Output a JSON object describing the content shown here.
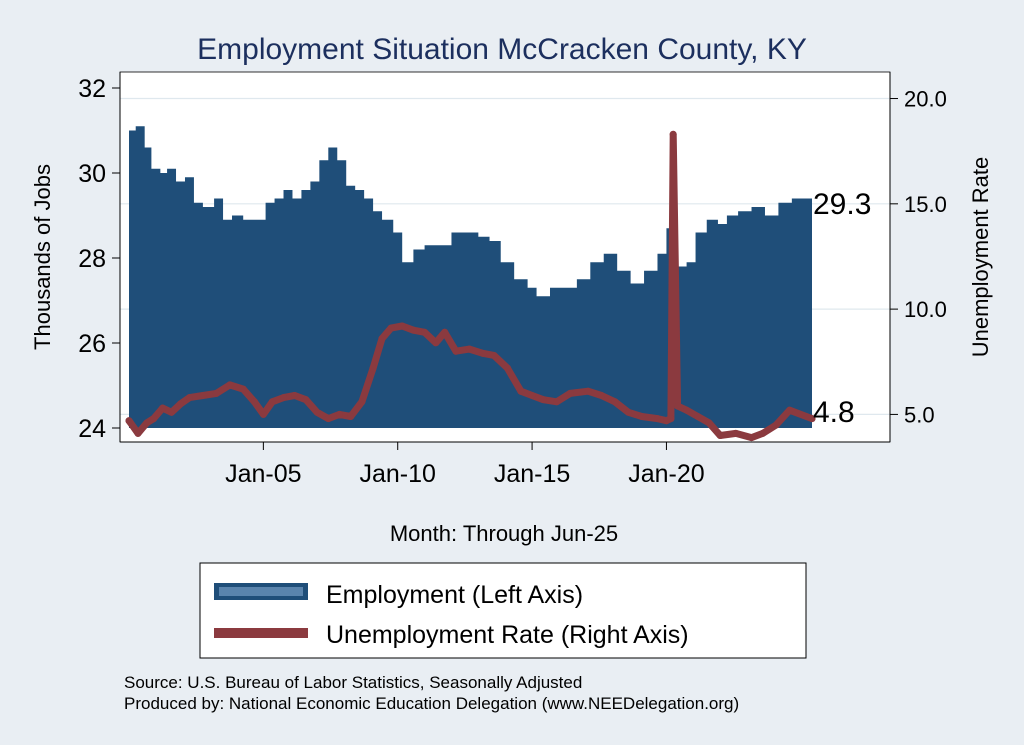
{
  "chart_data": {
    "type": "area",
    "title": "Employment Situation McCracken  County, KY",
    "xlabel": "Month: Through Jun-25",
    "ylabel_left": "Thousands of Jobs",
    "ylabel_right": "Unemployment Rate",
    "ylim_left": [
      24,
      32
    ],
    "ylim_right": [
      3.5,
      20.5
    ],
    "left_ticks": [
      "24",
      "26",
      "28",
      "30",
      "32"
    ],
    "right_ticks": [
      "5.0",
      "10.0",
      "15.0",
      "20.0"
    ],
    "x_ticks": [
      "Jan-05",
      "Jan-10",
      "Jan-15",
      "Jan-20"
    ],
    "x_range": [
      "Jan-2000",
      "Jun-2025"
    ],
    "grid": true,
    "legend_position": "bottom",
    "end_label_employment": "29.3",
    "end_label_unemployment": "4.8",
    "series": [
      {
        "name": "Employment (Left Axis)",
        "axis": "left",
        "style": "area",
        "color": "#1f4e79",
        "points": [
          [
            "2000-01",
            31.0
          ],
          [
            "2000-04",
            31.1
          ],
          [
            "2000-08",
            30.6
          ],
          [
            "2000-11",
            30.1
          ],
          [
            "2001-03",
            30.0
          ],
          [
            "2001-06",
            30.1
          ],
          [
            "2001-10",
            29.8
          ],
          [
            "2002-02",
            29.9
          ],
          [
            "2002-06",
            29.3
          ],
          [
            "2002-10",
            29.2
          ],
          [
            "2003-03",
            29.4
          ],
          [
            "2003-07",
            28.9
          ],
          [
            "2003-11",
            29.0
          ],
          [
            "2004-04",
            28.9
          ],
          [
            "2004-09",
            28.9
          ],
          [
            "2005-02",
            29.3
          ],
          [
            "2005-06",
            29.4
          ],
          [
            "2005-10",
            29.6
          ],
          [
            "2006-02",
            29.4
          ],
          [
            "2006-06",
            29.6
          ],
          [
            "2006-10",
            29.8
          ],
          [
            "2007-02",
            30.3
          ],
          [
            "2007-06",
            30.6
          ],
          [
            "2007-10",
            30.3
          ],
          [
            "2008-02",
            29.7
          ],
          [
            "2008-06",
            29.6
          ],
          [
            "2008-10",
            29.4
          ],
          [
            "2009-02",
            29.1
          ],
          [
            "2009-06",
            28.9
          ],
          [
            "2009-11",
            28.6
          ],
          [
            "2010-03",
            27.9
          ],
          [
            "2010-08",
            28.2
          ],
          [
            "2011-01",
            28.3
          ],
          [
            "2011-07",
            28.3
          ],
          [
            "2012-01",
            28.6
          ],
          [
            "2012-07",
            28.6
          ],
          [
            "2013-01",
            28.5
          ],
          [
            "2013-06",
            28.4
          ],
          [
            "2013-11",
            27.9
          ],
          [
            "2014-05",
            27.5
          ],
          [
            "2014-11",
            27.3
          ],
          [
            "2015-03",
            27.1
          ],
          [
            "2015-09",
            27.3
          ],
          [
            "2016-03",
            27.3
          ],
          [
            "2016-09",
            27.5
          ],
          [
            "2017-03",
            27.9
          ],
          [
            "2017-09",
            28.1
          ],
          [
            "2018-03",
            27.7
          ],
          [
            "2018-09",
            27.4
          ],
          [
            "2019-03",
            27.7
          ],
          [
            "2019-09",
            28.1
          ],
          [
            "2020-01",
            28.7
          ],
          [
            "2020-04",
            25.2
          ],
          [
            "2020-06",
            27.8
          ],
          [
            "2020-10",
            27.9
          ],
          [
            "2021-02",
            28.6
          ],
          [
            "2021-07",
            28.9
          ],
          [
            "2021-12",
            28.8
          ],
          [
            "2022-04",
            29.0
          ],
          [
            "2022-09",
            29.1
          ],
          [
            "2023-03",
            29.2
          ],
          [
            "2023-09",
            29.0
          ],
          [
            "2024-03",
            29.3
          ],
          [
            "2024-09",
            29.4
          ],
          [
            "2025-06",
            29.3
          ]
        ]
      },
      {
        "name": "Unemployment Rate (Right Axis)",
        "axis": "right",
        "style": "line",
        "color": "#8b3a3f",
        "points": [
          [
            "2000-01",
            4.7
          ],
          [
            "2000-05",
            4.1
          ],
          [
            "2000-09",
            4.6
          ],
          [
            "2000-12",
            4.8
          ],
          [
            "2001-04",
            5.3
          ],
          [
            "2001-08",
            5.1
          ],
          [
            "2001-12",
            5.5
          ],
          [
            "2002-04",
            5.8
          ],
          [
            "2002-10",
            5.9
          ],
          [
            "2003-04",
            6.0
          ],
          [
            "2003-10",
            6.4
          ],
          [
            "2004-04",
            6.2
          ],
          [
            "2004-09",
            5.6
          ],
          [
            "2005-01",
            5.0
          ],
          [
            "2005-05",
            5.6
          ],
          [
            "2005-10",
            5.8
          ],
          [
            "2006-03",
            5.9
          ],
          [
            "2006-08",
            5.7
          ],
          [
            "2007-01",
            5.1
          ],
          [
            "2007-06",
            4.8
          ],
          [
            "2007-11",
            5.0
          ],
          [
            "2008-04",
            4.9
          ],
          [
            "2008-09",
            5.6
          ],
          [
            "2009-02",
            7.2
          ],
          [
            "2009-06",
            8.6
          ],
          [
            "2009-10",
            9.1
          ],
          [
            "2010-03",
            9.2
          ],
          [
            "2010-08",
            9.0
          ],
          [
            "2011-01",
            8.9
          ],
          [
            "2011-06",
            8.4
          ],
          [
            "2011-10",
            8.9
          ],
          [
            "2012-03",
            8.0
          ],
          [
            "2012-09",
            8.1
          ],
          [
            "2013-03",
            7.9
          ],
          [
            "2013-08",
            7.8
          ],
          [
            "2014-02",
            7.2
          ],
          [
            "2014-08",
            6.1
          ],
          [
            "2015-01",
            5.9
          ],
          [
            "2015-06",
            5.7
          ],
          [
            "2015-12",
            5.6
          ],
          [
            "2016-06",
            6.0
          ],
          [
            "2017-02",
            6.1
          ],
          [
            "2017-08",
            5.9
          ],
          [
            "2018-02",
            5.6
          ],
          [
            "2018-08",
            5.1
          ],
          [
            "2019-02",
            4.9
          ],
          [
            "2019-09",
            4.8
          ],
          [
            "2020-01",
            4.7
          ],
          [
            "2020-03",
            4.8
          ],
          [
            "2020-04",
            18.3
          ],
          [
            "2020-06",
            5.4
          ],
          [
            "2020-10",
            5.2
          ],
          [
            "2021-03",
            4.9
          ],
          [
            "2021-08",
            4.6
          ],
          [
            "2022-01",
            4.0
          ],
          [
            "2022-08",
            4.1
          ],
          [
            "2023-03",
            3.9
          ],
          [
            "2023-08",
            4.1
          ],
          [
            "2024-02",
            4.5
          ],
          [
            "2024-08",
            5.2
          ],
          [
            "2025-06",
            4.8
          ]
        ]
      }
    ]
  },
  "source_line": "Source: U.S. Bureau of Labor Statistics, Seasonally Adjusted",
  "produced_line": "Produced by: National Economic Education Delegation (www.NEEDelegation.org)"
}
